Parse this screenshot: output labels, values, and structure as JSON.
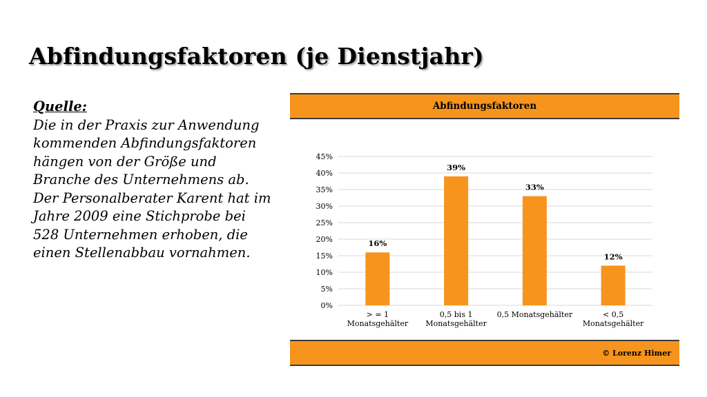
{
  "slide": {
    "title": "Abfindungsfaktoren (je Dienstjahr)",
    "source_heading": "Quelle:",
    "source_text": "Die in der Praxis zur Anwendung kommenden Abfindungsfaktoren hängen von der Größe und Branche des Unternehmens ab. Der Personalberater Karent  hat im Jahre 2009 eine Stichprobe bei 528 Unternehmen erhoben, die einen Stellenabbau vornahmen."
  },
  "chart_data": {
    "type": "bar",
    "title": "Abfindungsfaktoren",
    "footer": "© Lorenz Himer",
    "categories": [
      [
        "> = 1",
        "Monatsgehälter"
      ],
      [
        "0,5 bis 1",
        "Monatsgehälter"
      ],
      [
        "0,5 Monatsgehälter"
      ],
      [
        "< 0,5",
        "Monatsgehälter"
      ]
    ],
    "values": [
      16,
      39,
      33,
      12
    ],
    "data_labels": [
      "16%",
      "39%",
      "33%",
      "12%"
    ],
    "ylim": [
      0,
      45
    ],
    "yticks": [
      0,
      5,
      10,
      15,
      20,
      25,
      30,
      35,
      40,
      45
    ],
    "ytick_labels": [
      "0%",
      "5%",
      "10%",
      "15%",
      "20%",
      "25%",
      "30%",
      "35%",
      "40%",
      "45%"
    ],
    "grid": true,
    "colors": {
      "bar": "#f7941d",
      "header": "#f7941d",
      "grid": "#d9d9d9",
      "frame": "#3a3a3a"
    }
  }
}
